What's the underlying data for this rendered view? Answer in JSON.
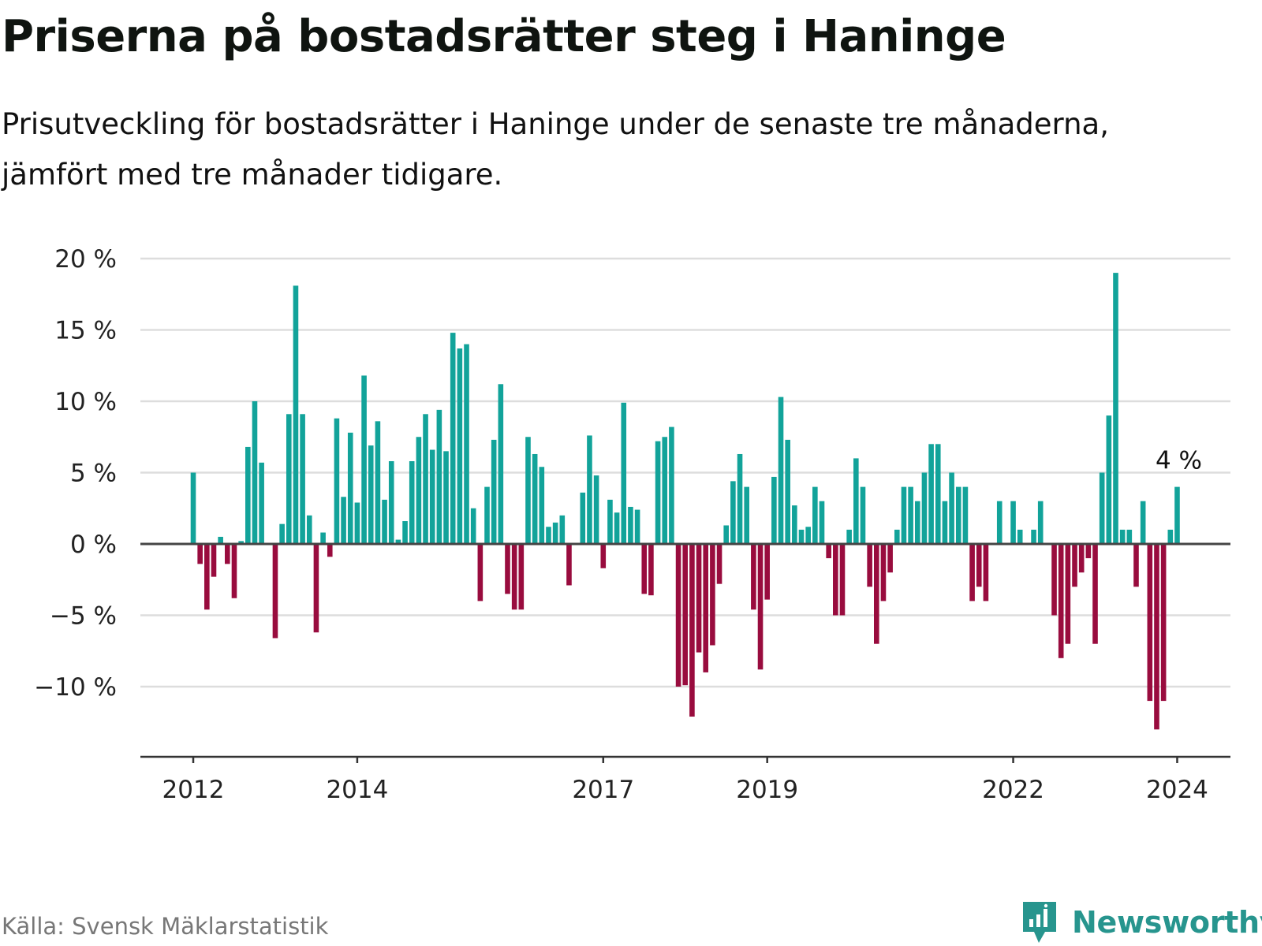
{
  "header": {
    "title": "Priserna på bostadsrätter steg i Haninge",
    "subtitle": "Prisutveckling för bostadsrätter i Haninge under de senaste tre månaderna, jämfört med tre månader tidigare."
  },
  "footer": {
    "source": "Källa: Svensk Mäklarstatistik",
    "brand": "Newsworthy"
  },
  "colors": {
    "positive": "#12a39a",
    "negative": "#990c3e",
    "grid": "#dddddd",
    "axis": "#444444",
    "brand": "#27958e"
  },
  "chart_data": {
    "type": "bar",
    "title": "Priserna på bostadsrätter steg i Haninge",
    "xlabel": "",
    "ylabel": "",
    "unit": "%",
    "ylim": [
      -14.5,
      20
    ],
    "yticks": [
      20,
      15,
      10,
      5,
      0,
      -5,
      -10
    ],
    "ytick_labels": [
      "20 %",
      "15 %",
      "10 %",
      "5 %",
      "0 %",
      "−5 %",
      "−10 %"
    ],
    "xticks": [
      {
        "label": "2012",
        "index": 0
      },
      {
        "label": "2014",
        "index": 24
      },
      {
        "label": "2017",
        "index": 60
      },
      {
        "label": "2019",
        "index": 84
      },
      {
        "label": "2022",
        "index": 120
      },
      {
        "label": "2024",
        "index": 144
      }
    ],
    "start": "2012-01",
    "annotation": {
      "text": "4 %",
      "index": 144
    },
    "values": [
      5.0,
      -1.4,
      -4.6,
      -2.3,
      0.5,
      -1.4,
      -3.8,
      0.2,
      6.8,
      10.0,
      5.7,
      0.0,
      -6.6,
      1.4,
      9.1,
      18.1,
      9.1,
      2.0,
      -6.2,
      0.8,
      -0.9,
      8.8,
      3.3,
      7.8,
      2.9,
      11.8,
      6.9,
      8.6,
      3.1,
      5.8,
      0.3,
      1.6,
      5.8,
      7.5,
      9.1,
      6.6,
      9.4,
      6.5,
      14.8,
      13.7,
      14.0,
      2.5,
      -4.0,
      4.0,
      7.3,
      11.2,
      -3.5,
      -4.6,
      -4.6,
      7.5,
      6.3,
      5.4,
      1.2,
      1.5,
      2.0,
      -2.9,
      0.0,
      3.6,
      7.6,
      4.8,
      -1.7,
      3.1,
      2.2,
      9.9,
      2.6,
      2.4,
      -3.5,
      -3.6,
      7.2,
      7.5,
      8.2,
      -10.0,
      -9.9,
      -12.1,
      -7.6,
      -9.0,
      -7.1,
      -2.8,
      1.3,
      4.4,
      6.3,
      4.0,
      -4.6,
      -8.8,
      -3.9,
      4.7,
      10.3,
      7.3,
      2.7,
      1.0,
      1.2,
      4.0,
      3.0,
      -1.0,
      -5.0,
      -5.0,
      1.0,
      6.0,
      4.0,
      -3.0,
      -7.0,
      -4.0,
      -2.0,
      1.0,
      4.0,
      4.0,
      3.0,
      5.0,
      7.0,
      7.0,
      3.0,
      5.0,
      4.0,
      4.0,
      -4.0,
      -3.0,
      -4.0,
      0.0,
      3.0,
      0.0,
      3.0,
      1.0,
      0.0,
      1.0,
      3.0,
      0.0,
      -5.0,
      -8.0,
      -7.0,
      -3.0,
      -2.0,
      -1.0,
      -7.0,
      5.0,
      9.0,
      19.0,
      1.0,
      1.0,
      -3.0,
      3.0,
      -11.0,
      -13.0,
      -11.0,
      1.0,
      4.0
    ]
  }
}
